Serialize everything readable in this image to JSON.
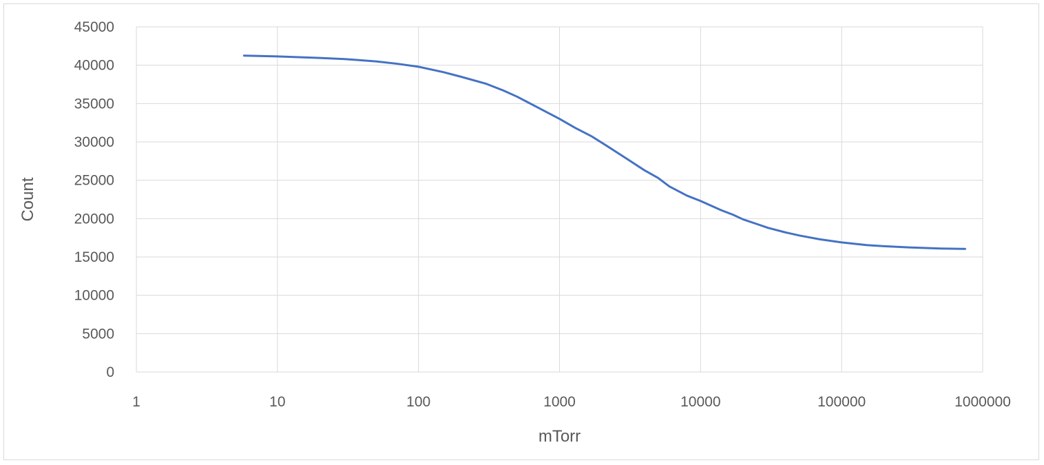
{
  "chart_data": {
    "type": "line",
    "title": "",
    "xlabel": "mTorr",
    "ylabel": "Count",
    "x_scale": "log",
    "xlim": [
      1,
      1000000
    ],
    "ylim": [
      0,
      45000
    ],
    "grid": true,
    "x_ticks": [
      "1",
      "10",
      "100",
      "1000",
      "10000",
      "100000",
      "1000000"
    ],
    "y_ticks": [
      "0",
      "5000",
      "10000",
      "15000",
      "20000",
      "25000",
      "30000",
      "35000",
      "40000",
      "45000"
    ],
    "series": [
      {
        "color": "#4472c4",
        "points": [
          [
            5.8,
            41250
          ],
          [
            10,
            41150
          ],
          [
            20,
            40950
          ],
          [
            30,
            40800
          ],
          [
            50,
            40500
          ],
          [
            70,
            40200
          ],
          [
            100,
            39800
          ],
          [
            150,
            39100
          ],
          [
            200,
            38500
          ],
          [
            300,
            37600
          ],
          [
            400,
            36700
          ],
          [
            500,
            35900
          ],
          [
            700,
            34500
          ],
          [
            1000,
            33000
          ],
          [
            1300,
            31800
          ],
          [
            1700,
            30700
          ],
          [
            2200,
            29400
          ],
          [
            3000,
            27800
          ],
          [
            4000,
            26300
          ],
          [
            5000,
            25300
          ],
          [
            6000,
            24200
          ],
          [
            8000,
            23000
          ],
          [
            10000,
            22300
          ],
          [
            14000,
            21100
          ],
          [
            17000,
            20500
          ],
          [
            20000,
            19900
          ],
          [
            25000,
            19300
          ],
          [
            30000,
            18800
          ],
          [
            40000,
            18200
          ],
          [
            50000,
            17800
          ],
          [
            70000,
            17300
          ],
          [
            100000,
            16900
          ],
          [
            150000,
            16550
          ],
          [
            200000,
            16400
          ],
          [
            300000,
            16250
          ],
          [
            500000,
            16100
          ],
          [
            750000,
            16050
          ]
        ]
      }
    ]
  }
}
